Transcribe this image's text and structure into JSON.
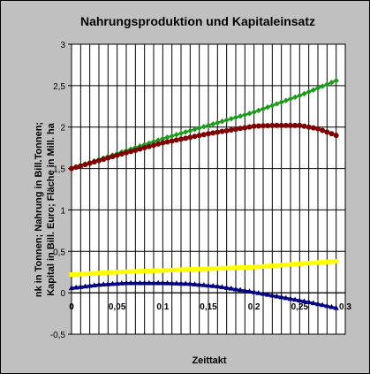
{
  "chart_data": {
    "type": "line",
    "title": "Nahrungsproduktion und Kapitaleinsatz",
    "xlabel": "Zeittakt",
    "ylabel_lines": [
      "nk in Tonnen; Nahrung in Bill.Tonnen;",
      "Kapital in Bill. Euro; Fläche in Mill. ha"
    ],
    "xlim": [
      0,
      0.3
    ],
    "ylim": [
      -0.5,
      3
    ],
    "x_ticks": [
      0,
      0.05,
      0.1,
      0.15,
      0.2,
      0.25,
      0.3
    ],
    "x_tick_labels": [
      "0",
      "0,05",
      "0,1",
      "0,15",
      "0,2",
      "0,25",
      "0,3"
    ],
    "y_ticks": [
      -0.5,
      0,
      0.5,
      1,
      1.5,
      2,
      2.5,
      3
    ],
    "y_tick_labels": [
      "-0,5",
      "0",
      "0,5",
      "1",
      "1,5",
      "2",
      "2,5",
      "3"
    ],
    "grid": {
      "vertical": true,
      "vertical_step": 0.01,
      "horizontal": true
    },
    "legend": "none",
    "background": "#ffffff",
    "series": [
      {
        "color": "#1e9a1e",
        "marker": "diamond",
        "x": [
          0,
          0.05,
          0.1,
          0.15,
          0.2,
          0.25,
          0.29
        ],
        "y": [
          1.5,
          1.68,
          1.86,
          2.02,
          2.18,
          2.38,
          2.56
        ]
      },
      {
        "color": "#800000",
        "marker": "circle",
        "x": [
          0,
          0.05,
          0.1,
          0.15,
          0.2,
          0.22,
          0.25,
          0.27,
          0.29
        ],
        "y": [
          1.5,
          1.66,
          1.81,
          1.92,
          2.01,
          2.02,
          2.02,
          1.98,
          1.9
        ]
      },
      {
        "color": "#ffff00",
        "marker": "square",
        "x": [
          0,
          0.05,
          0.1,
          0.15,
          0.2,
          0.25,
          0.29
        ],
        "y": [
          0.22,
          0.25,
          0.27,
          0.29,
          0.31,
          0.35,
          0.38
        ]
      },
      {
        "color": "#000080",
        "marker": "triangle",
        "x": [
          0,
          0.03,
          0.06,
          0.1,
          0.13,
          0.16,
          0.2,
          0.23,
          0.26,
          0.29
        ],
        "y": [
          0.06,
          0.1,
          0.12,
          0.12,
          0.11,
          0.08,
          0.01,
          -0.05,
          -0.11,
          -0.18
        ]
      }
    ]
  }
}
